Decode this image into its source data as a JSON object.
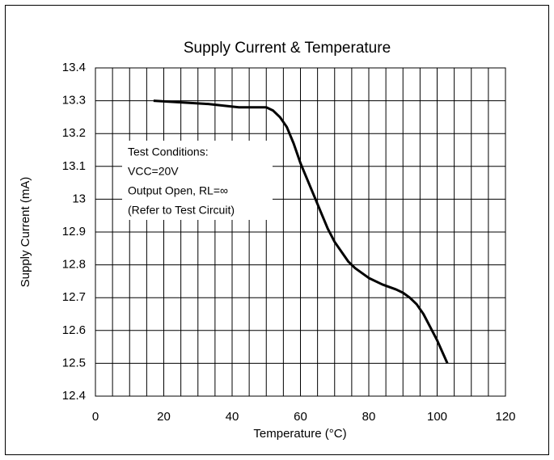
{
  "chart_data": {
    "type": "line",
    "title": "Supply Current & Temperature",
    "x_label": "Temperature (°C)",
    "y_label": "Supply Current (mA)",
    "annotation": [
      "Test Conditions:",
      "VCC=20V",
      "Output Open, RL=∞",
      "(Refer to Test Circuit)"
    ],
    "x": [
      17,
      25,
      33,
      42,
      48,
      50,
      52,
      54,
      56,
      58,
      60,
      62,
      64,
      66,
      68,
      70,
      72,
      74,
      76,
      80,
      84,
      88,
      90,
      92,
      94,
      96,
      98,
      100,
      103
    ],
    "series": [
      {
        "name": "Supply Current",
        "color": "#000000",
        "values": [
          13.3,
          13.295,
          13.29,
          13.28,
          13.28,
          13.28,
          13.27,
          13.25,
          13.22,
          13.17,
          13.11,
          13.06,
          13.01,
          12.96,
          12.91,
          12.87,
          12.84,
          12.81,
          12.79,
          12.76,
          12.74,
          12.725,
          12.715,
          12.7,
          12.68,
          12.65,
          12.61,
          12.57,
          12.5
        ]
      }
    ],
    "xlim": [
      0,
      120
    ],
    "xticks": [
      0,
      20,
      40,
      60,
      80,
      100,
      120
    ],
    "ylim": [
      12.4,
      13.4
    ],
    "yticks": [
      12.4,
      12.5,
      12.6,
      12.7,
      12.8,
      12.9,
      13,
      13.1,
      13.2,
      13.3,
      13.4
    ],
    "grid": true
  }
}
